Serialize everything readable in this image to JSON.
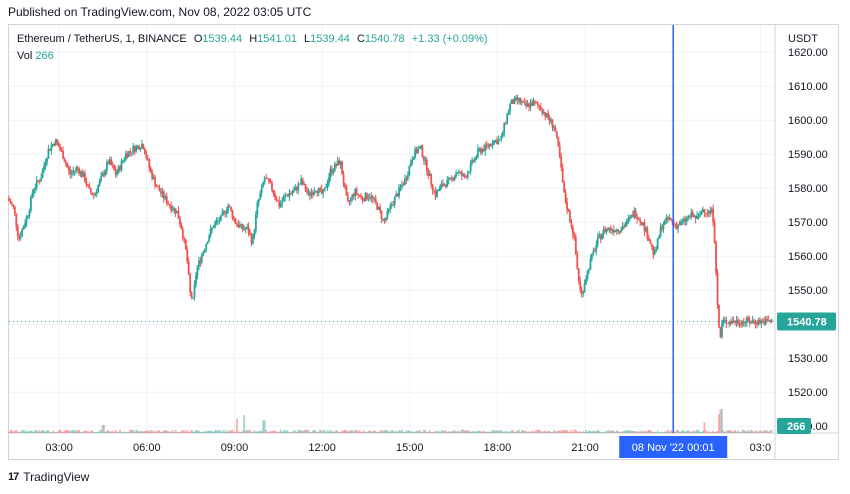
{
  "header": {
    "published": "Published on TradingView.com, Nov 08, 2022 03:05 UTC"
  },
  "legend": {
    "symbol": "Ethereum / TetherUS, 1, BINANCE",
    "open_label": "O",
    "open": "1539.44",
    "high_label": "H",
    "high": "1541.01",
    "low_label": "L",
    "low": "1539.44",
    "close_label": "C",
    "close": "1540.78",
    "change": "+1.33 (+0.09%)",
    "vol_label": "Vol",
    "vol": "266"
  },
  "axis": {
    "currency": "USDT",
    "last_price_tag": "1540.78",
    "last_volume_tag": "266",
    "crosshair_time_tag": "08 Nov '22   00:01"
  },
  "footer": {
    "brand": "TradingView"
  },
  "colors": {
    "up": "#26a69a",
    "down": "#ef5350",
    "crosshair": "#2962ff",
    "price_line": "#26a69a",
    "grid": "#f0f3fa",
    "axis_text": "#131722"
  },
  "chart_data": {
    "type": "candlestick",
    "symbol": "Ethereum / TetherUS",
    "interval": "1",
    "exchange": "BINANCE",
    "ylabel": "USDT",
    "ylim": [
      1508,
      1628
    ],
    "yticks": [
      1510,
      1520,
      1530,
      1540,
      1550,
      1560,
      1570,
      1580,
      1590,
      1600,
      1610,
      1620
    ],
    "ytick_labels": [
      "1510.00",
      "1520.00",
      "1530.00",
      "1540.00",
      "1550.00",
      "1560.00",
      "1570.00",
      "1580.00",
      "1590.00",
      "1600.00",
      "1610.00",
      "1620.00"
    ],
    "xticks": [
      [
        "03:00",
        180
      ],
      [
        "06:00",
        360
      ],
      [
        "09:00",
        540
      ],
      [
        "12:00",
        720
      ],
      [
        "15:00",
        900
      ],
      [
        "18:00",
        1080
      ],
      [
        "21:00",
        1260
      ],
      [
        "03:0",
        1620
      ]
    ],
    "xlim": [
      77,
      1650
    ],
    "crosshair_minute": 1441,
    "last_price": 1540.78,
    "last_volume": 266,
    "grid": true,
    "price_path": [
      [
        77,
        1577
      ],
      [
        90,
        1574
      ],
      [
        100,
        1565
      ],
      [
        110,
        1569
      ],
      [
        120,
        1573
      ],
      [
        130,
        1580
      ],
      [
        145,
        1583
      ],
      [
        160,
        1591
      ],
      [
        175,
        1594
      ],
      [
        190,
        1590
      ],
      [
        205,
        1584
      ],
      [
        220,
        1586
      ],
      [
        235,
        1583
      ],
      [
        245,
        1579
      ],
      [
        255,
        1578
      ],
      [
        270,
        1583
      ],
      [
        285,
        1588
      ],
      [
        300,
        1584
      ],
      [
        320,
        1590
      ],
      [
        340,
        1592
      ],
      [
        355,
        1593
      ],
      [
        370,
        1585
      ],
      [
        385,
        1580
      ],
      [
        400,
        1577
      ],
      [
        410,
        1575
      ],
      [
        425,
        1573
      ],
      [
        435,
        1568
      ],
      [
        445,
        1560
      ],
      [
        452,
        1549
      ],
      [
        458,
        1547
      ],
      [
        465,
        1556
      ],
      [
        475,
        1560
      ],
      [
        490,
        1566
      ],
      [
        500,
        1569
      ],
      [
        515,
        1571
      ],
      [
        530,
        1575
      ],
      [
        545,
        1570
      ],
      [
        560,
        1568
      ],
      [
        570,
        1568
      ],
      [
        580,
        1564
      ],
      [
        590,
        1575
      ],
      [
        605,
        1583
      ],
      [
        620,
        1580
      ],
      [
        635,
        1575
      ],
      [
        650,
        1578
      ],
      [
        665,
        1579
      ],
      [
        680,
        1582
      ],
      [
        695,
        1578
      ],
      [
        710,
        1580
      ],
      [
        725,
        1578
      ],
      [
        740,
        1585
      ],
      [
        760,
        1588
      ],
      [
        775,
        1575
      ],
      [
        790,
        1579
      ],
      [
        805,
        1577
      ],
      [
        820,
        1578
      ],
      [
        835,
        1575
      ],
      [
        850,
        1570
      ],
      [
        865,
        1575
      ],
      [
        880,
        1579
      ],
      [
        895,
        1583
      ],
      [
        910,
        1590
      ],
      [
        925,
        1592
      ],
      [
        940,
        1585
      ],
      [
        955,
        1578
      ],
      [
        970,
        1581
      ],
      [
        985,
        1582
      ],
      [
        1000,
        1585
      ],
      [
        1015,
        1583
      ],
      [
        1030,
        1587
      ],
      [
        1045,
        1591
      ],
      [
        1060,
        1592
      ],
      [
        1075,
        1594
      ],
      [
        1090,
        1594
      ],
      [
        1100,
        1600
      ],
      [
        1110,
        1605
      ],
      [
        1125,
        1606
      ],
      [
        1140,
        1604
      ],
      [
        1155,
        1605
      ],
      [
        1170,
        1604
      ],
      [
        1185,
        1601
      ],
      [
        1200,
        1598
      ],
      [
        1210,
        1590
      ],
      [
        1220,
        1578
      ],
      [
        1230,
        1572
      ],
      [
        1240,
        1566
      ],
      [
        1248,
        1555
      ],
      [
        1255,
        1548
      ],
      [
        1263,
        1553
      ],
      [
        1275,
        1559
      ],
      [
        1290,
        1565
      ],
      [
        1305,
        1568
      ],
      [
        1320,
        1568
      ],
      [
        1335,
        1568
      ],
      [
        1350,
        1570
      ],
      [
        1365,
        1573
      ],
      [
        1380,
        1570
      ],
      [
        1395,
        1565
      ],
      [
        1405,
        1560
      ],
      [
        1420,
        1569
      ],
      [
        1435,
        1571
      ],
      [
        1450,
        1569
      ],
      [
        1465,
        1570
      ],
      [
        1480,
        1572
      ],
      [
        1495,
        1571
      ],
      [
        1505,
        1574
      ],
      [
        1515,
        1573
      ],
      [
        1525,
        1573
      ],
      [
        1530,
        1563
      ],
      [
        1535,
        1545
      ],
      [
        1540,
        1535
      ],
      [
        1545,
        1540.78
      ]
    ],
    "volume_spikes": [
      [
        270,
        90
      ],
      [
        545,
        160
      ],
      [
        560,
        200
      ],
      [
        600,
        140
      ],
      [
        1505,
        120
      ],
      [
        1535,
        210
      ],
      [
        1540,
        266
      ]
    ]
  }
}
